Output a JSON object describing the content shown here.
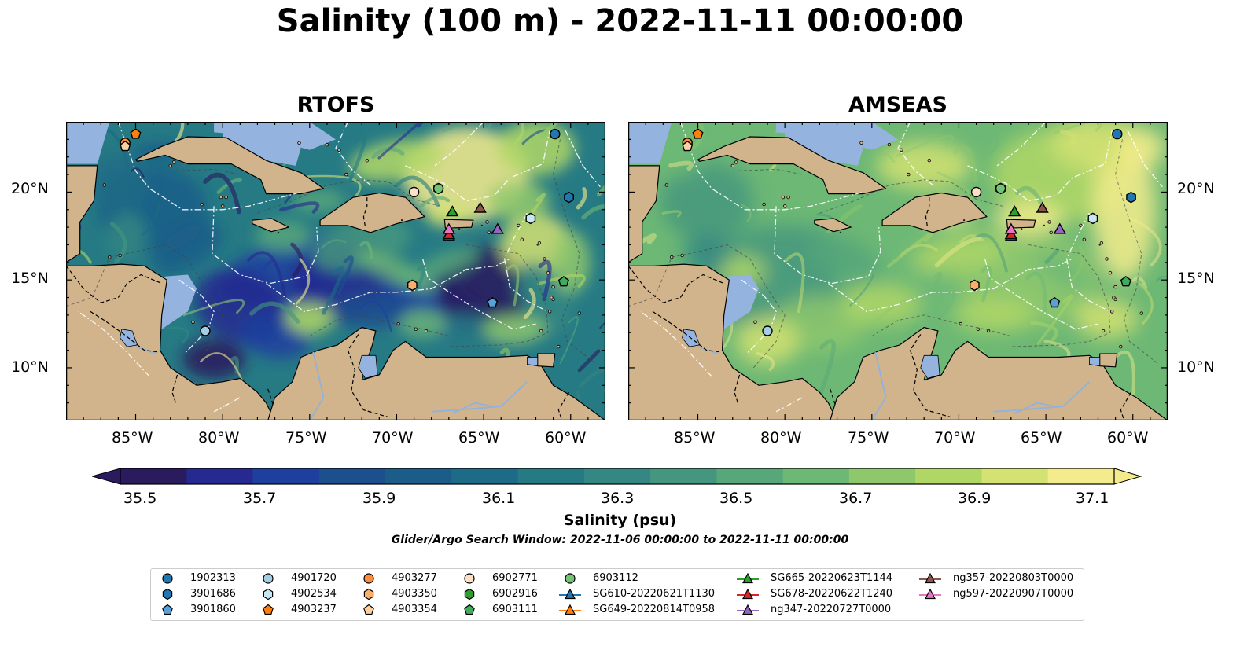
{
  "title": "Salinity (100 m) - 2022-11-11 00:00:00",
  "panels": [
    {
      "title": "RTOFS",
      "model": "rtofs"
    },
    {
      "title": "AMSEAS",
      "model": "amseas"
    }
  ],
  "lat_ticks": [
    "20°N",
    "15°N",
    "10°N"
  ],
  "lon_ticks": [
    "85°W",
    "80°W",
    "75°W",
    "70°W",
    "65°W",
    "60°W"
  ],
  "colorbar": {
    "ticks": [
      "35.5",
      "35.7",
      "35.9",
      "36.1",
      "36.3",
      "36.5",
      "36.7",
      "36.9",
      "37.1"
    ],
    "colors": [
      "#2a1a5e",
      "#26298f",
      "#1f3f9f",
      "#1c4f8e",
      "#1b5d88",
      "#1d6b86",
      "#267a84",
      "#348782",
      "#45967e",
      "#57a77a",
      "#6db875",
      "#8fc86c",
      "#b0d766",
      "#d3e272",
      "#f4ec8c"
    ],
    "label": "Salinity (psu)",
    "subtitle": "Glider/Argo Search Window: 2022-11-06 00:00:00 to 2022-11-11 00:00:00",
    "extend": "both"
  },
  "map_colors": {
    "land": "#d2b48c",
    "no_data": "#94b4df"
  },
  "platforms": [
    {
      "id": "1902313",
      "marker": "circle",
      "color": "#1f77b4",
      "lon": -60.9,
      "lat": 23.3
    },
    {
      "id": "3901686",
      "marker": "hexagon",
      "color": "#1f77b4",
      "lon": -60.1,
      "lat": 19.7
    },
    {
      "id": "3901860",
      "marker": "pentagon",
      "color": "#5aa0d8",
      "lon": -64.5,
      "lat": 13.7
    },
    {
      "id": "4901720",
      "marker": "circle",
      "color": "#a6cee3",
      "lon": -81.0,
      "lat": 12.1
    },
    {
      "id": "4902534",
      "marker": "hexagon",
      "color": "#c9e6f5",
      "lon": -62.3,
      "lat": 18.5
    },
    {
      "id": "4903237",
      "marker": "pentagon",
      "color": "#ff7f0e",
      "lon": -85.0,
      "lat": 23.3
    },
    {
      "id": "4903277",
      "marker": "circle",
      "color": "#fd8d3c",
      "lon": -85.6,
      "lat": 22.8
    },
    {
      "id": "4903350",
      "marker": "hexagon",
      "color": "#fdae6b",
      "lon": -69.1,
      "lat": 14.7
    },
    {
      "id": "4903354",
      "marker": "pentagon",
      "color": "#fdd0a2",
      "lon": -85.6,
      "lat": 22.6
    },
    {
      "id": "6902771",
      "marker": "circle",
      "color": "#fde0c5",
      "lon": -69.0,
      "lat": 20.0
    },
    {
      "id": "6902916",
      "marker": "hexagon",
      "color": "#2ca02c",
      "lon": -67.6,
      "lat": 20.2
    },
    {
      "id": "6903111",
      "marker": "pentagon",
      "color": "#41ab5d",
      "lon": -60.4,
      "lat": 14.9
    },
    {
      "id": "6903112",
      "marker": "circle",
      "color": "#74c476",
      "lon": -67.6,
      "lat": 20.2
    }
  ],
  "gliders": [
    {
      "id": "SG610-20220621T1130",
      "color": "#1f77b4",
      "lon": -67.0,
      "lat": 17.5
    },
    {
      "id": "SG649-20220814T0958",
      "color": "#ff7f0e",
      "lon": -67.0,
      "lat": 17.6
    },
    {
      "id": "SG665-20220623T1144",
      "color": "#2ca02c",
      "lon": -66.8,
      "lat": 18.9
    },
    {
      "id": "SG678-20220622T1240",
      "color": "#d62728",
      "lon": -67.0,
      "lat": 17.6
    },
    {
      "id": "ng347-20220727T0000",
      "color": "#9467bd",
      "lon": -64.2,
      "lat": 17.9
    },
    {
      "id": "ng357-20220803T0000",
      "color": "#8c564b",
      "lon": -65.2,
      "lat": 19.1
    },
    {
      "id": "ng597-20220907T0000",
      "color": "#e377c2",
      "lon": -67.0,
      "lat": 17.9
    }
  ]
}
